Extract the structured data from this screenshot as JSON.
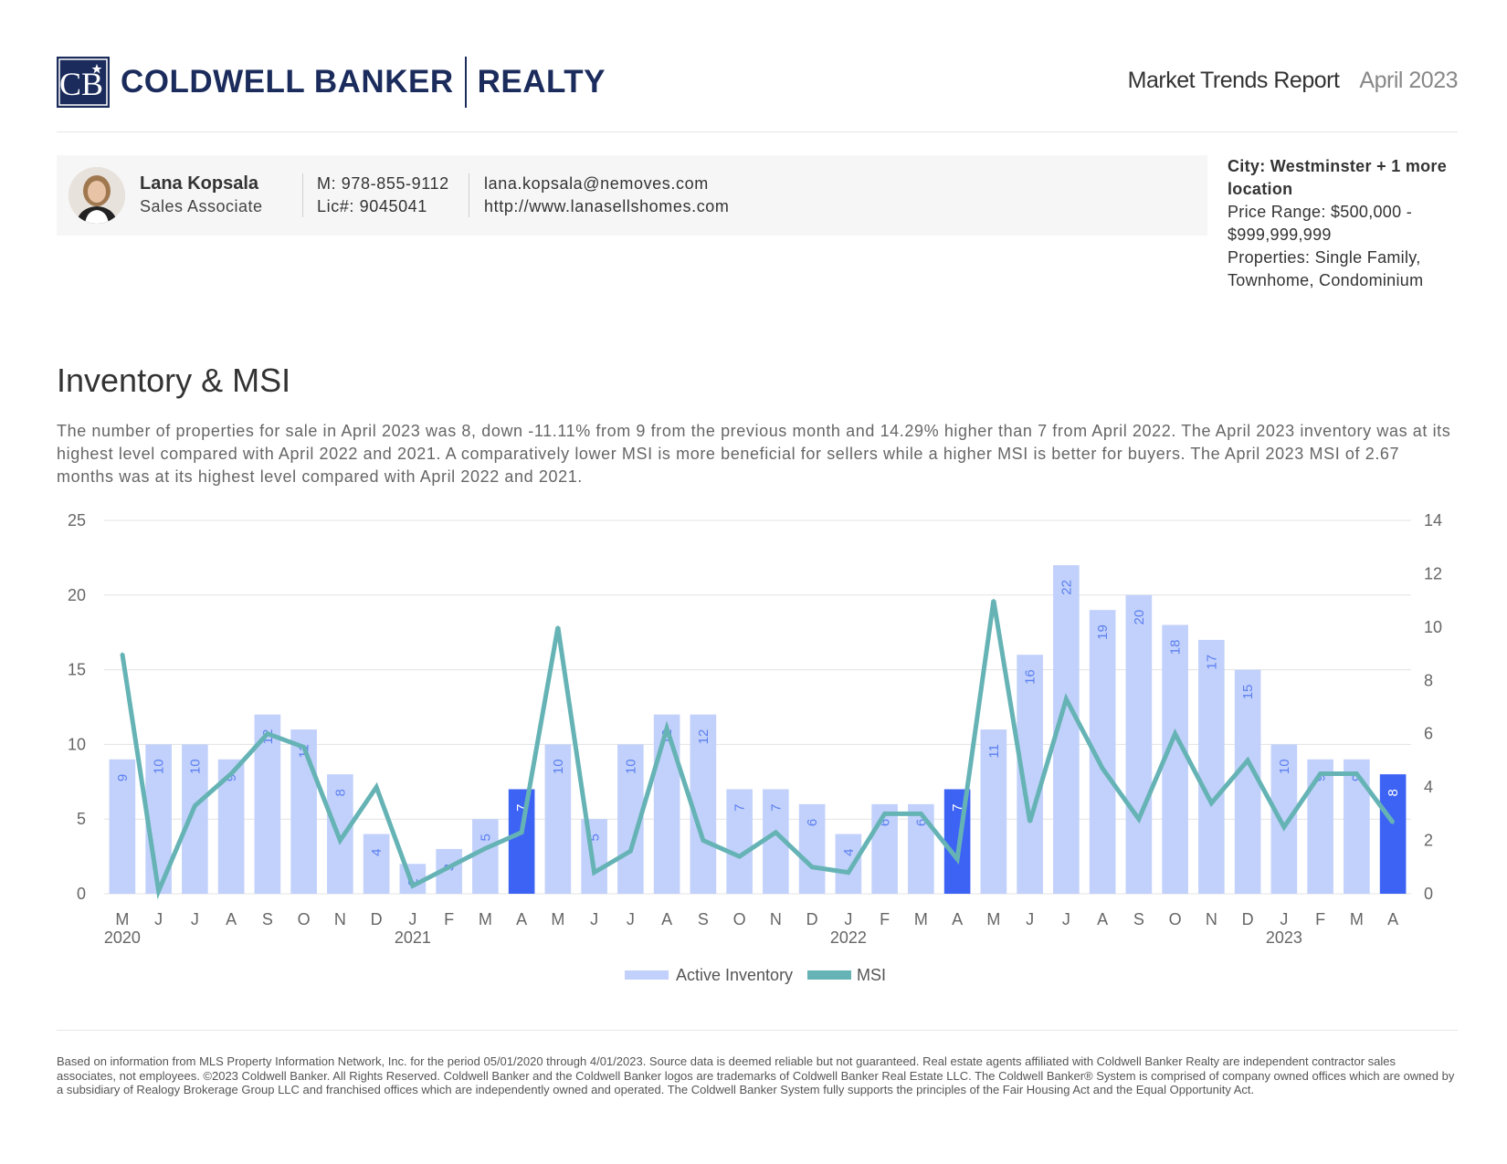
{
  "brand": {
    "name_left": "COLDWELL BANKER",
    "name_right": "REALTY",
    "mark": "CB",
    "color": "#1a2b5c"
  },
  "report": {
    "title": "Market Trends Report",
    "date": "April 2023"
  },
  "agent": {
    "name": "Lana Kopsala",
    "role": "Sales Associate",
    "mobile": "M: 978-855-9112",
    "license": "Lic#: 9045041",
    "email": "lana.kopsala@nemoves.com",
    "website": "http://www.lanasellshomes.com"
  },
  "filters": {
    "city": "City: Westminster + 1 more location",
    "price_range": "Price Range: $500,000 - $999,999,999",
    "properties": "Properties: Single Family, Townhome, Condominium"
  },
  "section": {
    "title": "Inventory & MSI",
    "description": "The number of properties for sale in April 2023 was 8, down -11.11% from 9 from the previous month and 14.29% higher than 7 from April 2022. The April 2023 inventory was at its highest level compared with April 2022 and 2021. A comparatively lower MSI is more beneficial for sellers while a higher MSI is better for buyers. The April 2023 MSI of 2.67 months was at its highest level compared with April 2022 and 2021."
  },
  "chart_data": {
    "type": "bar",
    "categories": [
      "M",
      "J",
      "J",
      "A",
      "S",
      "O",
      "N",
      "D",
      "J",
      "F",
      "M",
      "A",
      "M",
      "J",
      "J",
      "A",
      "S",
      "O",
      "N",
      "D",
      "J",
      "F",
      "M",
      "A",
      "M",
      "J",
      "J",
      "A",
      "S",
      "O",
      "N",
      "D",
      "J",
      "F",
      "M",
      "A"
    ],
    "year_labels": [
      {
        "index": 0,
        "label": "2020"
      },
      {
        "index": 8,
        "label": "2021"
      },
      {
        "index": 20,
        "label": "2022"
      },
      {
        "index": 32,
        "label": "2023"
      }
    ],
    "series": [
      {
        "name": "Active Inventory",
        "kind": "bar",
        "axis": "left",
        "values": [
          9,
          10,
          10,
          9,
          12,
          11,
          8,
          4,
          2,
          3,
          5,
          7,
          10,
          5,
          10,
          12,
          12,
          7,
          7,
          6,
          4,
          6,
          6,
          7,
          11,
          16,
          22,
          19,
          20,
          18,
          17,
          15,
          10,
          9,
          9,
          8
        ],
        "color": "#c2d1fb",
        "highlight_color": "#3d63f5",
        "highlight_indices": [
          11,
          23,
          35
        ]
      },
      {
        "name": "MSI",
        "kind": "line",
        "axis": "right",
        "values": [
          9,
          0.1,
          3.3,
          4.5,
          6,
          5.5,
          2,
          4,
          0.3,
          1,
          1.7,
          2.3,
          10,
          0.8,
          1.6,
          6.2,
          2,
          1.4,
          2.3,
          1,
          0.8,
          3,
          3,
          1.3,
          11,
          2.7,
          7.3,
          4.7,
          2.8,
          6,
          3.4,
          5,
          2.5,
          4.5,
          4.5,
          2.67
        ],
        "color": "#66b3b5"
      }
    ],
    "ylim_left": [
      0,
      25
    ],
    "yticks_left": [
      0,
      5,
      10,
      15,
      20,
      25
    ],
    "ylim_right": [
      0,
      14
    ],
    "yticks_right": [
      0,
      2,
      4,
      6,
      8,
      10,
      12,
      14
    ],
    "grid": true,
    "legend_position": "bottom-center"
  },
  "footer": {
    "text": "Based on information from MLS Property Information Network, Inc. for the period 05/01/2020 through 4/01/2023. Source data is deemed reliable but not guaranteed. Real estate agents affiliated with Coldwell Banker Realty are independent contractor sales associates, not employees. ©2023 Coldwell Banker. All Rights Reserved. Coldwell Banker and the Coldwell Banker logos are trademarks of Coldwell Banker Real Estate LLC. The Coldwell Banker® System is comprised of company owned offices which are owned by a subsidiary of Realogy Brokerage Group LLC and franchised offices which are independently owned and operated. The Coldwell Banker System fully supports the principles of the Fair Housing Act and the Equal Opportunity Act."
  }
}
